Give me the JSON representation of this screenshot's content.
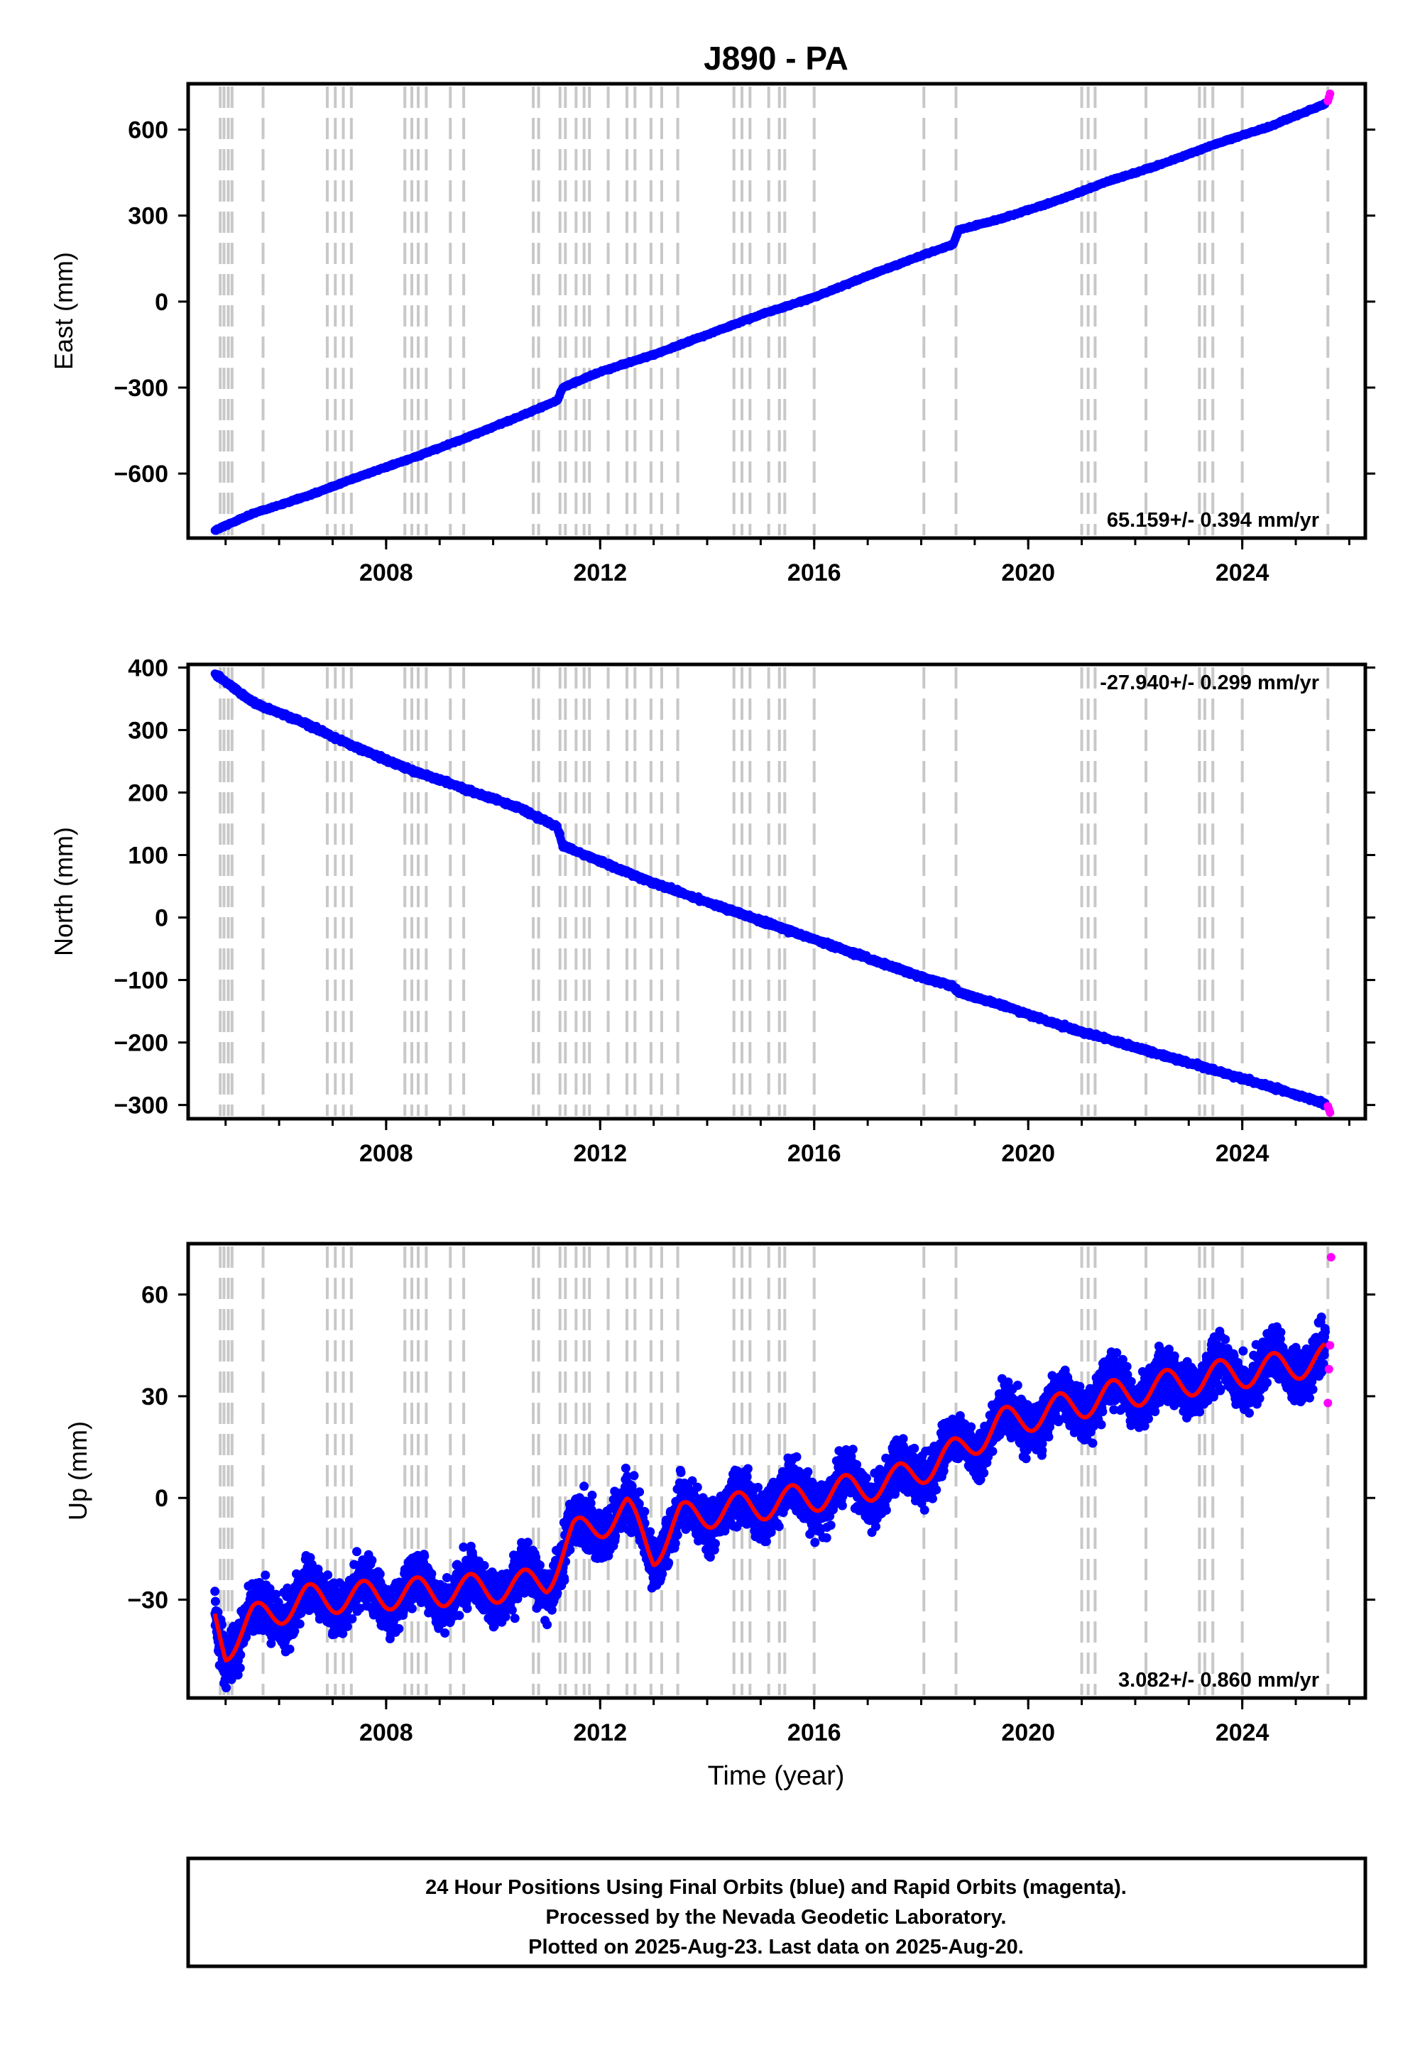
{
  "title": "J890 - PA",
  "colors": {
    "final": "#0000ff",
    "rapid": "#ff00ff",
    "model": "#ff0000",
    "steps": "#c8c8c8",
    "frame": "#000000"
  },
  "xlabel": "Time (year)",
  "xlim": [
    2004.3,
    2026.3
  ],
  "x_ticks": [
    2008,
    2012,
    2016,
    2020,
    2024
  ],
  "x_tick_labels": [
    "2008",
    "2012",
    "2016",
    "2020",
    "2024"
  ],
  "steps": [
    2004.9,
    2004.97,
    2005.05,
    2005.12,
    2005.7,
    2006.9,
    2007.05,
    2007.2,
    2007.35,
    2008.35,
    2008.48,
    2008.6,
    2008.75,
    2009.2,
    2009.45,
    2010.75,
    2010.85,
    2011.25,
    2011.35,
    2011.55,
    2011.7,
    2011.8,
    2012.15,
    2012.5,
    2012.65,
    2012.95,
    2013.15,
    2013.45,
    2014.5,
    2014.65,
    2014.8,
    2015.15,
    2015.35,
    2015.45,
    2016.0,
    2018.05,
    2018.65,
    2021.0,
    2021.12,
    2021.25,
    2022.2,
    2023.2,
    2023.3,
    2023.45,
    2024.0,
    2025.6
  ],
  "panels": [
    {
      "id": "east",
      "ylabel": "East (mm)",
      "ylim": [
        -825,
        760
      ],
      "y_ticks": [
        -600,
        -300,
        0,
        300,
        600
      ],
      "y_tick_labels": [
        "−600",
        "−300",
        "0",
        "300",
        "600"
      ],
      "rate_text": "65.159+/- 0.394 mm/yr",
      "rate_position": "bottom-right"
    },
    {
      "id": "north",
      "ylabel": "North (mm)",
      "ylim": [
        -322,
        405
      ],
      "y_ticks": [
        -300,
        -200,
        -100,
        0,
        100,
        200,
        300,
        400
      ],
      "y_tick_labels": [
        "−300",
        "−200",
        "−100",
        "0",
        "100",
        "200",
        "300",
        "400"
      ],
      "rate_text": "-27.940+/- 0.299 mm/yr",
      "rate_position": "top-right"
    },
    {
      "id": "up",
      "ylabel": "Up (mm)",
      "ylim": [
        -59,
        75
      ],
      "y_ticks": [
        -30,
        0,
        30,
        60
      ],
      "y_tick_labels": [
        "−30",
        "0",
        "30",
        "60"
      ],
      "rate_text": "3.082+/- 0.860 mm/yr",
      "rate_position": "bottom-right"
    }
  ],
  "chart_data": [
    {
      "type": "scatter",
      "panel": "east",
      "ylabel": "East (mm)",
      "rate": "65.159+/- 0.394 mm/yr",
      "series": [
        {
          "name": "Final Orbits (blue)",
          "x": [
            2004.8,
            2005.5,
            2006.5,
            2007.5,
            2008.5,
            2009.5,
            2010.5,
            2011.2,
            2011.3,
            2012.0,
            2013.0,
            2014.0,
            2015.0,
            2016.0,
            2017.0,
            2018.0,
            2018.6,
            2018.7,
            2019.5,
            2020.5,
            2021.5,
            2022.5,
            2023.5,
            2024.5,
            2025.55
          ],
          "y": [
            -798,
            -740,
            -680,
            -610,
            -545,
            -475,
            -400,
            -345,
            -300,
            -245,
            -185,
            -115,
            -45,
            15,
            90,
            160,
            200,
            250,
            290,
            350,
            420,
            480,
            550,
            610,
            690
          ]
        },
        {
          "name": "Rapid Orbits (magenta)",
          "x": [
            2025.6,
            2025.62,
            2025.64
          ],
          "y": [
            700,
            712,
            725
          ]
        }
      ]
    },
    {
      "type": "scatter",
      "panel": "north",
      "ylabel": "North (mm)",
      "rate": "-27.940+/- 0.299 mm/yr",
      "series": [
        {
          "name": "Final Orbits (blue)",
          "x": [
            2004.8,
            2005.5,
            2006.5,
            2007.5,
            2008.5,
            2009.5,
            2010.5,
            2011.2,
            2011.3,
            2012.0,
            2013.0,
            2014.0,
            2015.0,
            2016.0,
            2017.0,
            2018.0,
            2018.6,
            2018.7,
            2019.5,
            2020.5,
            2021.5,
            2022.5,
            2023.5,
            2024.5,
            2025.55
          ],
          "y": [
            390,
            345,
            310,
            270,
            235,
            205,
            175,
            145,
            115,
            90,
            55,
            25,
            -5,
            -35,
            -65,
            -95,
            -110,
            -120,
            -140,
            -170,
            -195,
            -220,
            -245,
            -270,
            -298
          ]
        },
        {
          "name": "Rapid Orbits (magenta)",
          "x": [
            2025.6,
            2025.62,
            2025.64
          ],
          "y": [
            -302,
            -307,
            -312
          ]
        }
      ]
    },
    {
      "type": "scatter",
      "panel": "up",
      "ylabel": "Up (mm)",
      "rate": "3.082+/- 0.860 mm/yr",
      "series": [
        {
          "name": "Final Orbits (blue)",
          "x": [
            2004.8,
            2005.0,
            2005.5,
            2006.5,
            2007.5,
            2008.5,
            2009.5,
            2010.5,
            2011.0,
            2011.5,
            2012.5,
            2013.0,
            2013.5,
            2014.5,
            2015.5,
            2016.5,
            2017.5,
            2018.5,
            2019.5,
            2020.5,
            2021.5,
            2022.5,
            2023.5,
            2024.5,
            2025.55
          ],
          "y": [
            -35,
            -44,
            -36,
            -30,
            -29,
            -28,
            -27,
            -26,
            -24,
            -11,
            -4,
            -16,
            -6,
            -3,
            -1,
            2,
            5,
            12,
            22,
            26,
            30,
            33,
            36,
            38,
            41
          ]
        },
        {
          "name": "Rapid Orbits (magenta)",
          "x": [
            2025.6,
            2025.62,
            2025.64,
            2025.66
          ],
          "y": [
            28,
            38,
            45,
            71
          ]
        }
      ]
    }
  ],
  "footer": {
    "line1": "24 Hour Positions Using Final Orbits (blue) and Rapid Orbits (magenta).",
    "line2": "Processed by the Nevada Geodetic Laboratory.",
    "line3": "Plotted on 2025-Aug-23. Last data on 2025-Aug-20."
  }
}
